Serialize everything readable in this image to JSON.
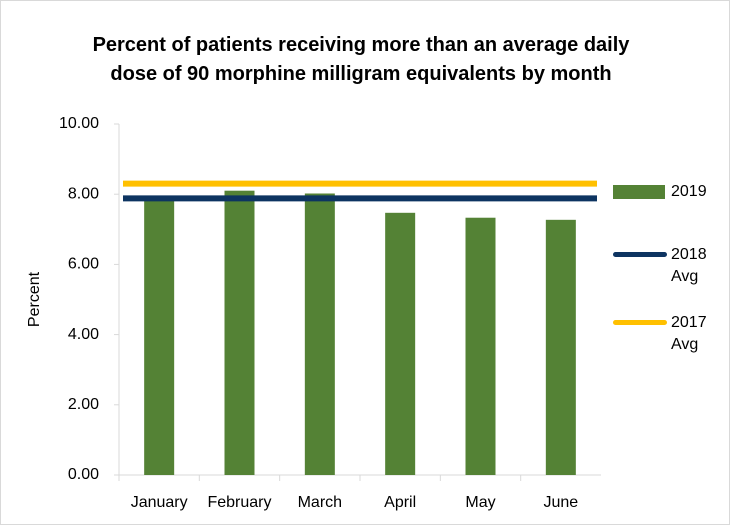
{
  "chart_data": {
    "type": "bar",
    "title": "Percent of patients receiving more than an average daily dose of 90 morphine milligram equivalents by month",
    "y_label": "Percent",
    "categories": [
      "January",
      "February",
      "March",
      "April",
      "May",
      "June"
    ],
    "series": [
      {
        "name": "2019",
        "color": "#548235",
        "values": [
          7.85,
          8.1,
          8.02,
          7.47,
          7.33,
          7.27
        ]
      }
    ],
    "reference_lines": [
      {
        "name": "2018 Avg",
        "color": "#0d3461",
        "value": 7.88
      },
      {
        "name": "2017 Avg",
        "color": "#ffc000",
        "value": 8.3
      }
    ],
    "ylim": [
      0,
      10
    ],
    "yticks": [
      {
        "value": 0,
        "label": "0.00"
      },
      {
        "value": 2,
        "label": "2.00"
      },
      {
        "value": 4,
        "label": "4.00"
      },
      {
        "value": 6,
        "label": "6.00"
      },
      {
        "value": 8,
        "label": "8.00"
      },
      {
        "value": 10,
        "label": "10.00"
      }
    ],
    "grid": false,
    "legend": "right"
  }
}
